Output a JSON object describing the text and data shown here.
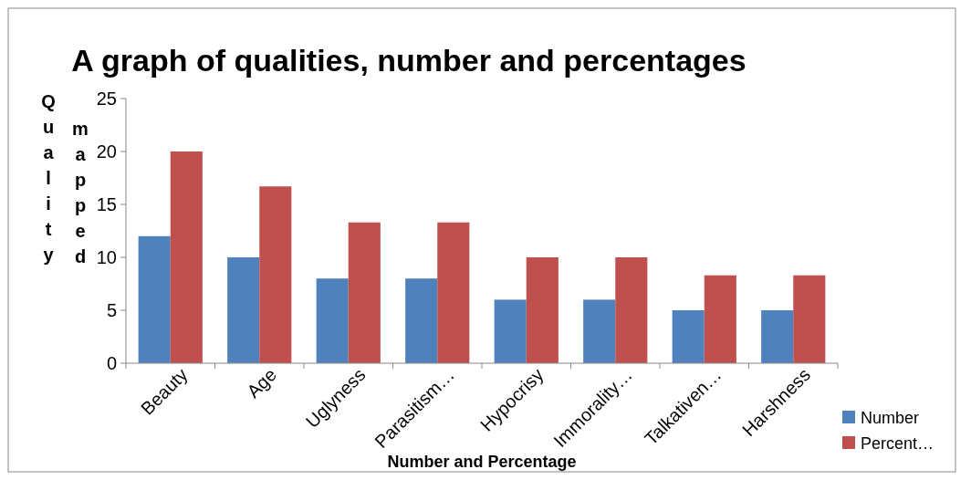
{
  "chart_data": {
    "type": "bar",
    "title": "A graph of qualities, number and percentages",
    "xlabel": "Number and Percentage",
    "ylabel": "Quality",
    "annotations": [
      "mapped"
    ],
    "categories": [
      "Beauty",
      "Age",
      "Uglyness",
      "Parasitism…",
      "Hypocrisy",
      "Immorality…",
      "Talkativen…",
      "Harshness"
    ],
    "series": [
      {
        "name": "Number",
        "color": "#4f81bd",
        "values": [
          12,
          10,
          8,
          8,
          6,
          6,
          5,
          5
        ]
      },
      {
        "name": "Percent…",
        "color": "#c0504d",
        "values": [
          20,
          16.7,
          13.3,
          13.3,
          10,
          10,
          8.3,
          8.3
        ]
      }
    ],
    "ylim": [
      0,
      25
    ],
    "yticks": [
      0,
      5,
      10,
      15,
      20,
      25
    ],
    "grid": false,
    "legend": "bottom right"
  }
}
